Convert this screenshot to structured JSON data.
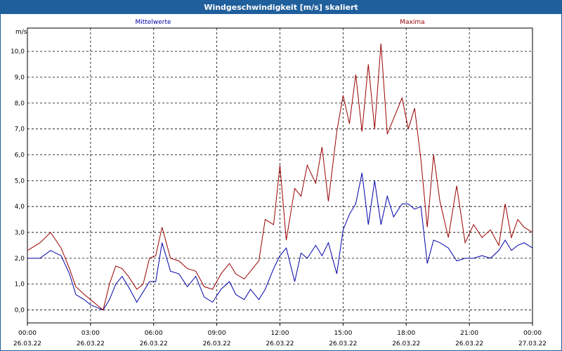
{
  "colors": {
    "title_bg": "#1f5f9c",
    "mean": "#0000aa",
    "max": "#990000",
    "grid": "#000000"
  },
  "chart_data": {
    "type": "line",
    "title": "Windgeschwindigkeit [m/s] skaliert",
    "ylabel": "m/s",
    "ylim": [
      -0.5,
      10.9
    ],
    "yticks": [
      "0,0",
      "1,0",
      "2,0",
      "3,0",
      "4,0",
      "5,0",
      "6,0",
      "7,0",
      "8,0",
      "9,0",
      "10,0"
    ],
    "xlim": [
      0,
      24
    ],
    "xticks": [
      {
        "time": "00:00",
        "date": "26.03.22"
      },
      {
        "time": "03:00",
        "date": "26.03.22"
      },
      {
        "time": "06:00",
        "date": "26.03.22"
      },
      {
        "time": "09:00",
        "date": "26.03.22"
      },
      {
        "time": "12:00",
        "date": "26.03.22"
      },
      {
        "time": "15:00",
        "date": "26.03.22"
      },
      {
        "time": "18:00",
        "date": "26.03.22"
      },
      {
        "time": "21:00",
        "date": "26.03.22"
      },
      {
        "time": "00:00",
        "date": "27.03.22"
      }
    ],
    "grid": true,
    "series": [
      {
        "name": "Mittelwerte",
        "color": "#0000aa",
        "x": [
          0,
          0.6,
          1.1,
          1.6,
          2.0,
          2.3,
          2.7,
          3.0,
          3.3,
          3.6,
          3.9,
          4.2,
          4.5,
          4.8,
          5.2,
          5.5,
          5.8,
          6.1,
          6.4,
          6.8,
          7.2,
          7.6,
          8.0,
          8.4,
          8.8,
          9.2,
          9.6,
          9.9,
          10.3,
          10.6,
          11.0,
          11.3,
          11.7,
          12.0,
          12.3,
          12.7,
          13.0,
          13.3,
          13.7,
          14.0,
          14.3,
          14.7,
          15.0,
          15.3,
          15.6,
          15.9,
          16.2,
          16.5,
          16.8,
          17.1,
          17.4,
          17.8,
          18.1,
          18.4,
          18.7,
          19.0,
          19.3,
          19.6,
          20.0,
          20.4,
          20.8,
          21.2,
          21.6,
          22.0,
          22.4,
          22.7,
          23.0,
          23.3,
          23.6,
          24.0
        ],
        "y": [
          2.0,
          2.0,
          2.3,
          2.1,
          1.4,
          0.6,
          0.4,
          0.2,
          0.1,
          0.0,
          0.4,
          1.0,
          1.3,
          0.9,
          0.3,
          0.7,
          1.1,
          1.1,
          2.6,
          1.5,
          1.4,
          0.9,
          1.3,
          0.5,
          0.3,
          0.8,
          1.1,
          0.6,
          0.4,
          0.8,
          0.4,
          0.8,
          1.6,
          2.1,
          2.4,
          1.1,
          2.2,
          2.0,
          2.5,
          2.1,
          2.6,
          1.4,
          3.1,
          3.7,
          4.1,
          5.3,
          3.3,
          5.0,
          3.3,
          4.4,
          3.6,
          4.1,
          4.1,
          3.9,
          4.0,
          1.8,
          2.7,
          2.6,
          2.4,
          1.9,
          2.0,
          2.0,
          2.1,
          2.0,
          2.3,
          2.7,
          2.3,
          2.5,
          2.6,
          2.4
        ]
      },
      {
        "name": "Maxima",
        "color": "#990000",
        "x": [
          0,
          0.6,
          1.1,
          1.6,
          2.0,
          2.3,
          2.7,
          3.0,
          3.3,
          3.6,
          3.9,
          4.2,
          4.5,
          4.8,
          5.2,
          5.5,
          5.8,
          6.1,
          6.4,
          6.8,
          7.2,
          7.6,
          8.0,
          8.4,
          8.8,
          9.2,
          9.6,
          9.9,
          10.3,
          10.6,
          11.0,
          11.3,
          11.7,
          12.0,
          12.3,
          12.7,
          13.0,
          13.3,
          13.7,
          14.0,
          14.3,
          14.7,
          15.0,
          15.3,
          15.6,
          15.9,
          16.2,
          16.5,
          16.8,
          17.1,
          17.4,
          17.8,
          18.1,
          18.4,
          18.7,
          19.0,
          19.3,
          19.6,
          20.0,
          20.4,
          20.8,
          21.2,
          21.6,
          22.0,
          22.4,
          22.7,
          23.0,
          23.3,
          23.6,
          24.0
        ],
        "y": [
          2.3,
          2.6,
          3.0,
          2.4,
          1.6,
          0.9,
          0.6,
          0.4,
          0.2,
          0.0,
          1.0,
          1.7,
          1.6,
          1.3,
          0.8,
          1.0,
          2.0,
          2.1,
          3.2,
          2.0,
          1.9,
          1.6,
          1.5,
          0.9,
          0.8,
          1.4,
          1.8,
          1.4,
          1.2,
          1.5,
          1.9,
          3.5,
          3.3,
          5.6,
          2.7,
          4.7,
          4.4,
          5.6,
          4.9,
          6.3,
          4.2,
          6.9,
          8.3,
          7.2,
          9.1,
          6.9,
          9.5,
          7.0,
          10.3,
          6.8,
          7.4,
          8.2,
          7.0,
          7.8,
          5.8,
          3.2,
          6.0,
          4.2,
          2.8,
          4.8,
          2.6,
          3.3,
          2.8,
          3.1,
          2.5,
          4.1,
          2.8,
          3.5,
          3.2,
          3.0
        ]
      }
    ]
  }
}
